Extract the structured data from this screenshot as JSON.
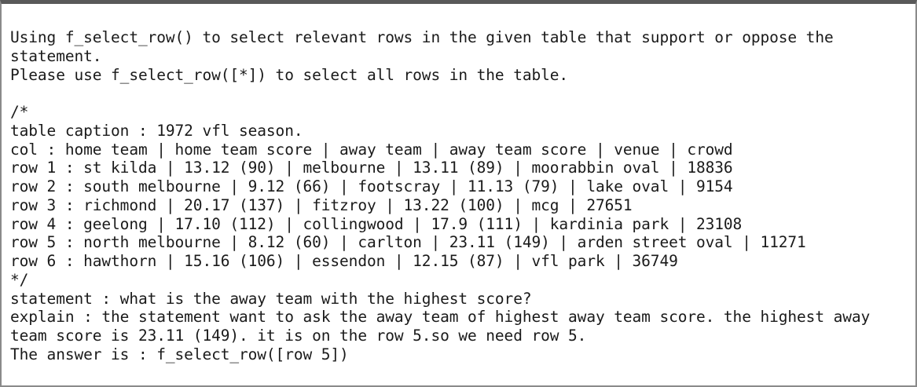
{
  "prompt": {
    "instruction_1": "Using f_select_row() to select relevant rows in the given table that support or oppose the statement.",
    "instruction_2": "Please use f_select_row([*]) to select all rows in the table.",
    "comment_open": "/*",
    "caption": "table caption : 1972 vfl season.",
    "columns": "col : home team | home team score | away team | away team score | venue | crowd",
    "rows": [
      "row 1 : st kilda | 13.12 (90) | melbourne | 13.11 (89) | moorabbin oval | 18836",
      "row 2 : south melbourne | 9.12 (66) | footscray | 11.13 (79) | lake oval | 9154",
      "row 3 : richmond | 20.17 (137) | fitzroy | 13.22 (100) | mcg | 27651",
      "row 4 : geelong | 17.10 (112) | collingwood | 17.9 (111) | kardinia park | 23108",
      "row 5 : north melbourne | 8.12 (60) | carlton | 23.11 (149) | arden street oval | 11271",
      "row 6 : hawthorn | 15.16 (106) | essendon | 12.15 (87) | vfl park | 36749"
    ],
    "comment_close": "*/",
    "statement": "statement : what is the away team with the highest score?",
    "explain": "explain : the statement want to ask the away team of highest away team score. the highest away team score is 23.11 (149). it is on the row 5.so we need row 5.",
    "answer": "The answer is : f_select_row([row 5])"
  }
}
